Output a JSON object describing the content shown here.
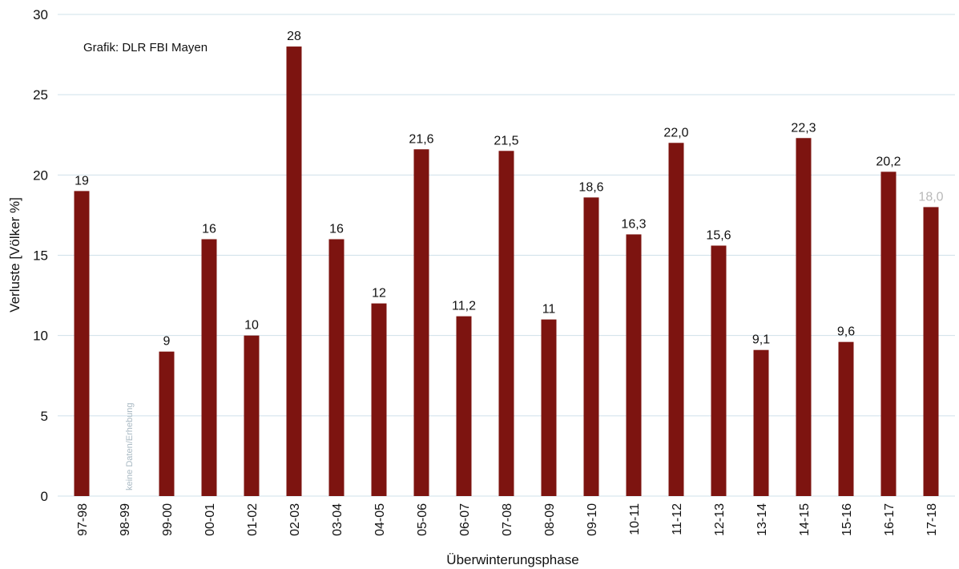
{
  "chart_data": {
    "type": "bar",
    "title": "",
    "credit": "Grafik: DLR FBI Mayen",
    "xlabel": "Überwinterungsphase",
    "ylabel": "Verluste [Völker %]",
    "ylim": [
      0,
      30
    ],
    "yticks": [
      "0",
      "5",
      "10",
      "15",
      "20",
      "25",
      "30"
    ],
    "grid": true,
    "bar_color": "#7d1410",
    "categories": [
      "97-98",
      "98-99",
      "99-00",
      "00-01",
      "01-02",
      "02-03",
      "03-04",
      "04-05",
      "05-06",
      "06-07",
      "07-08",
      "08-09",
      "09-10",
      "10-11",
      "11-12",
      "12-13",
      "13-14",
      "14-15",
      "15-16",
      "16-17",
      "17-18"
    ],
    "values": [
      19,
      null,
      9,
      16,
      10,
      28,
      16,
      12,
      21.6,
      11.2,
      21.5,
      11,
      18.6,
      16.3,
      22.0,
      15.6,
      9.1,
      22.3,
      9.6,
      20.2,
      18.0
    ],
    "data_labels": [
      "19",
      "",
      "9",
      "16",
      "10",
      "28",
      "16",
      "12",
      "21,6",
      "11,2",
      "21,5",
      "11",
      "18,6",
      "16,3",
      "22,0",
      "15,6",
      "9,1",
      "22,3",
      "9,6",
      "20,2",
      "18,0"
    ],
    "muted_label_index": 20,
    "missing_note": "keine Daten/Erhebung",
    "missing_note_index": 1
  }
}
